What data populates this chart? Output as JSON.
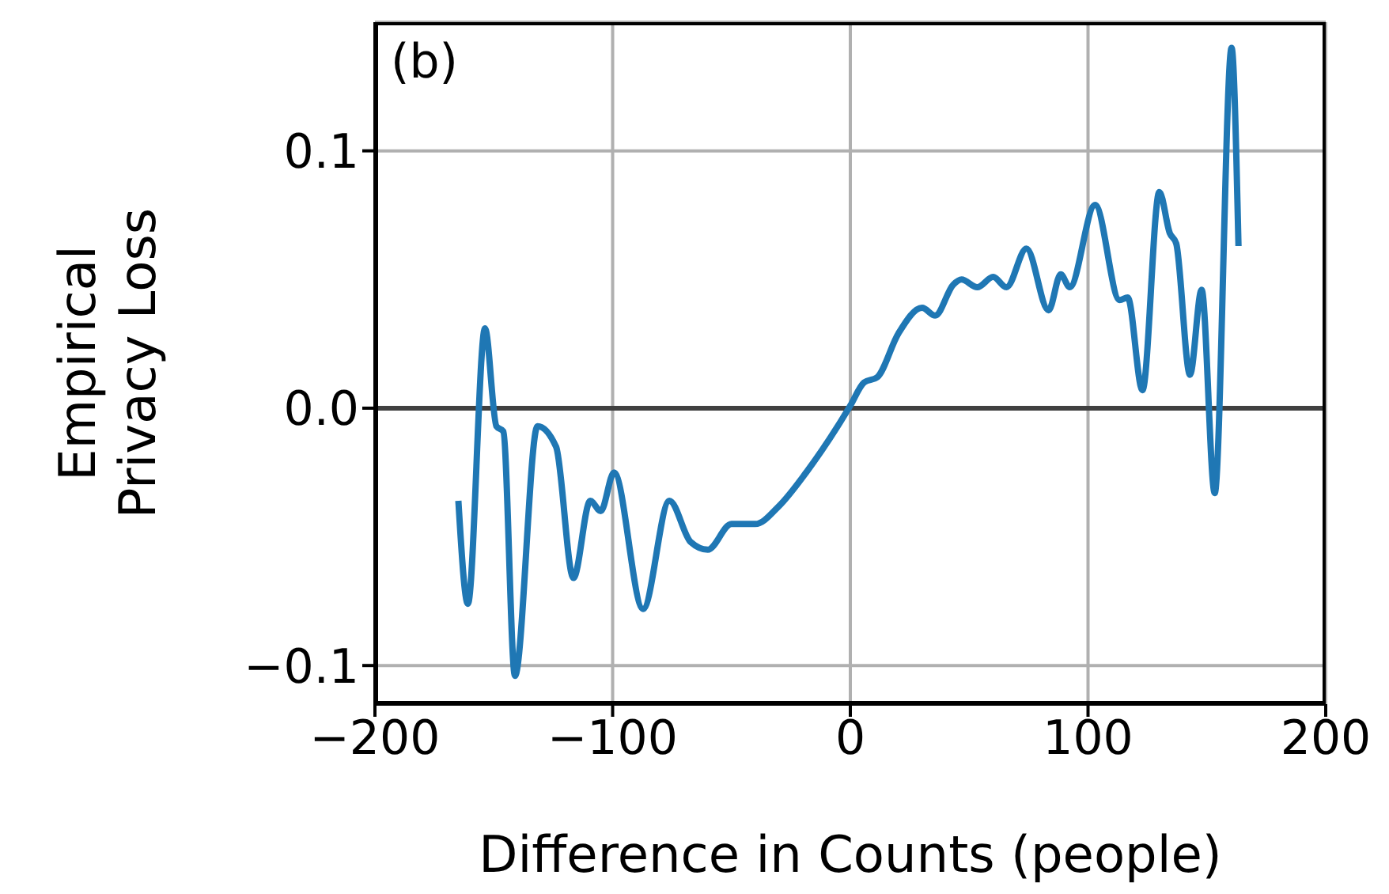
{
  "chart_data": {
    "type": "line",
    "xlabel": "Difference in Counts (people)",
    "ylabel": "Empirical\nPrivacy Loss",
    "annotations": [
      "(b)"
    ],
    "xlim": [
      -200,
      200
    ],
    "ylim": [
      -0.115,
      0.15
    ],
    "xticks": [
      {
        "value": -200,
        "label": "−200"
      },
      {
        "value": -100,
        "label": "−100"
      },
      0,
      100,
      200
    ],
    "yticks": [
      {
        "value": -0.1,
        "label": "−0.1"
      },
      {
        "value": 0,
        "label": "0.0"
      },
      0.1
    ],
    "grid": true,
    "legend": false,
    "marker": "none",
    "line_style": "solid",
    "ref_lines": [
      {
        "axis": "y",
        "value": 0,
        "color": "#404040"
      }
    ],
    "series": [
      {
        "color": "#1f77b4",
        "x": [
          -164.9,
          -160.9,
          -153.7,
          -148.9,
          -146,
          -141.1,
          -131.6,
          -123.8,
          -116.5,
          -109.4,
          -105,
          -99.4,
          -87.2,
          -76.1,
          -67.2,
          -60,
          -50,
          -40,
          -30,
          -18.6,
          -5.3,
          0,
          5.8,
          11.3,
          20.2,
          30.2,
          35.7,
          43.3,
          46.8,
          53.4,
          60.1,
          65.7,
          74.1,
          83.4,
          88.5,
          92.3,
          103,
          113.3,
          116.7,
          122.9,
          130,
          134.4,
          137.1,
          142.9,
          147.8,
          153.3,
          160.4,
          163.3
        ],
        "values": [
          -0.036,
          -0.076,
          0.031,
          -0.007,
          -0.009,
          -0.104,
          -0.007,
          -0.015,
          -0.066,
          -0.036,
          -0.04,
          -0.025,
          -0.078,
          -0.036,
          -0.052,
          -0.055,
          -0.045,
          -0.045,
          -0.038,
          -0.025,
          -0.007,
          0.001,
          0.01,
          0.012,
          0.029,
          0.039,
          0.036,
          0.048,
          0.05,
          0.047,
          0.051,
          0.047,
          0.062,
          0.038,
          0.052,
          0.047,
          0.079,
          0.042,
          0.043,
          0.007,
          0.084,
          0.068,
          0.064,
          0.013,
          0.046,
          -0.033,
          0.14,
          0.063
        ]
      }
    ]
  }
}
